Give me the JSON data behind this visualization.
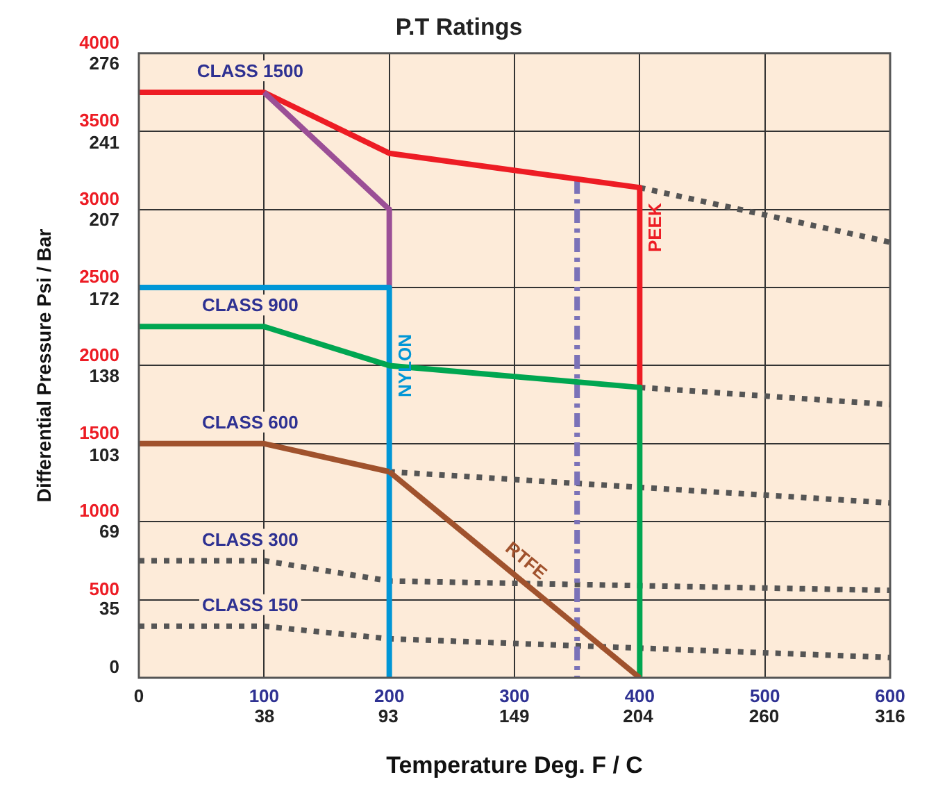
{
  "chart_data": {
    "type": "line",
    "title": "P.T Ratings",
    "xlabel": "Temperature Deg. F / C",
    "ylabel": "Differential Pressure Psi / Bar",
    "xlim": [
      0,
      600
    ],
    "xticks": [
      0,
      100,
      200,
      300,
      400,
      500,
      600
    ],
    "x2lim": [
      -17.8,
      316
    ],
    "x2ticks": [
      38,
      93,
      149,
      204,
      260,
      316
    ],
    "ylim": [
      0,
      4000
    ],
    "yticks": [
      0,
      500,
      1000,
      1500,
      2000,
      2500,
      3000,
      3500,
      4000
    ],
    "y2lim": [
      0,
      276
    ],
    "y2ticks": [
      35,
      69,
      103,
      138,
      172,
      207,
      241,
      276
    ],
    "grid": true,
    "legend": false,
    "marker": "none",
    "series": [
      {
        "color": "#555555",
        "line_style": "dotted",
        "x": [
          400,
          600
        ],
        "values": [
          3140,
          2790
        ]
      },
      {
        "color": "#555555",
        "line_style": "dotted",
        "x": [
          400,
          600
        ],
        "values": [
          1860,
          1750
        ]
      },
      {
        "color": "#555555",
        "line_style": "dotted",
        "x": [
          200,
          600
        ],
        "values": [
          1320,
          1120
        ]
      },
      {
        "name": "CLASS 300",
        "color": "#555555",
        "line_style": "dotted",
        "x": [
          0,
          100,
          200,
          600
        ],
        "values": [
          750,
          750,
          620,
          560
        ]
      },
      {
        "name": "CLASS 150",
        "color": "#555555",
        "line_style": "dotted",
        "x": [
          0,
          100,
          200,
          600
        ],
        "values": [
          330,
          330,
          250,
          130
        ]
      },
      {
        "color": "#7b72b8",
        "line_style": "dashed",
        "x": [
          350,
          350
        ],
        "values": [
          3190,
          0
        ]
      },
      {
        "name": "CLASS 1500",
        "color": "#ed1c24",
        "line_style": "solid",
        "x": [
          0,
          100,
          200,
          400
        ],
        "values": [
          3750,
          3750,
          3360,
          3140
        ]
      },
      {
        "color": "#9b4f96",
        "line_style": "solid",
        "x": [
          100,
          200,
          200
        ],
        "values": [
          3750,
          3000,
          2500
        ]
      },
      {
        "name": "NYLON",
        "color": "#0096d6",
        "line_style": "solid",
        "x": [
          0,
          200,
          200
        ],
        "values": [
          2500,
          2500,
          0
        ]
      },
      {
        "name": "PEEK",
        "color": "#ed1c24",
        "line_style": "solid",
        "x": [
          400,
          400
        ],
        "values": [
          3140,
          1860
        ]
      },
      {
        "name": "CLASS 900",
        "color": "#00a651",
        "line_style": "solid",
        "x": [
          0,
          100,
          200,
          400
        ],
        "values": [
          2250,
          2250,
          2000,
          1860
        ]
      },
      {
        "color": "#00a651",
        "line_style": "solid",
        "x": [
          400,
          400
        ],
        "values": [
          1860,
          0
        ]
      },
      {
        "name": "CLASS 600",
        "color": "#a0522d",
        "line_style": "solid",
        "x": [
          0,
          100,
          200
        ],
        "values": [
          1500,
          1500,
          1320
        ]
      },
      {
        "name": "RTFE",
        "color": "#a0522d",
        "line_style": "solid",
        "x": [
          200,
          400
        ],
        "values": [
          1320,
          0
        ]
      }
    ]
  }
}
